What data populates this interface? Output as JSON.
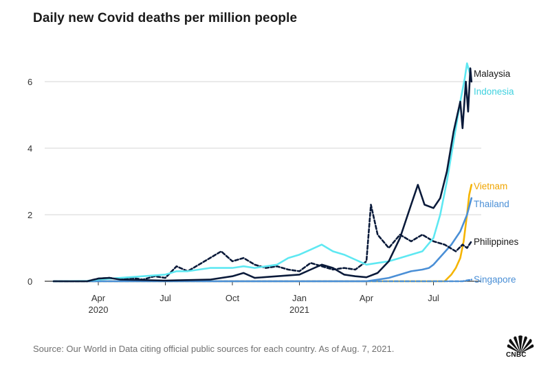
{
  "chart_data": {
    "type": "line",
    "title": "Daily new Covid deaths per million people",
    "source": "Source: Our World in Data citing official public sources for each country. As of Aug. 7, 2021.",
    "xlabel": "",
    "ylabel": "",
    "xlim": [
      0,
      18.6
    ],
    "ylim": [
      0,
      6.6
    ],
    "yticks": [
      0,
      2,
      4,
      6
    ],
    "xticks": [
      {
        "x": 2,
        "label": "Apr",
        "year": "2020"
      },
      {
        "x": 5,
        "label": "Jul",
        "year": ""
      },
      {
        "x": 8,
        "label": "Oct",
        "year": ""
      },
      {
        "x": 11,
        "label": "Jan",
        "year": "2021"
      },
      {
        "x": 14,
        "label": "Apr",
        "year": ""
      },
      {
        "x": 17,
        "label": "Jul",
        "year": ""
      }
    ],
    "series": [
      {
        "name": "Indonesia",
        "color": "#5ee8f2",
        "dash": "none",
        "points": [
          [
            0,
            0
          ],
          [
            1.5,
            0.01
          ],
          [
            2,
            0.05
          ],
          [
            3,
            0.1
          ],
          [
            4,
            0.15
          ],
          [
            5,
            0.2
          ],
          [
            5.5,
            0.3
          ],
          [
            6,
            0.3
          ],
          [
            7,
            0.4
          ],
          [
            8,
            0.4
          ],
          [
            8.5,
            0.45
          ],
          [
            9,
            0.4
          ],
          [
            10,
            0.5
          ],
          [
            10.5,
            0.7
          ],
          [
            11,
            0.8
          ],
          [
            11.5,
            0.95
          ],
          [
            12,
            1.1
          ],
          [
            12.5,
            0.9
          ],
          [
            13,
            0.8
          ],
          [
            13.5,
            0.65
          ],
          [
            14,
            0.5
          ],
          [
            14.5,
            0.55
          ],
          [
            15,
            0.6
          ],
          [
            15.5,
            0.7
          ],
          [
            16,
            0.8
          ],
          [
            16.5,
            0.9
          ],
          [
            17,
            1.3
          ],
          [
            17.3,
            2.0
          ],
          [
            17.6,
            3.0
          ],
          [
            17.9,
            4.2
          ],
          [
            18.2,
            5.4
          ],
          [
            18.4,
            6.1
          ],
          [
            18.5,
            6.55
          ],
          [
            18.65,
            6.2
          ]
        ]
      },
      {
        "name": "Malaysia",
        "color": "#0a1a3a",
        "dash": "none",
        "points": [
          [
            0,
            0
          ],
          [
            1.5,
            0
          ],
          [
            2,
            0.08
          ],
          [
            2.5,
            0.1
          ],
          [
            3,
            0.05
          ],
          [
            5,
            0.02
          ],
          [
            7,
            0.05
          ],
          [
            8,
            0.15
          ],
          [
            8.5,
            0.25
          ],
          [
            9,
            0.1
          ],
          [
            10,
            0.15
          ],
          [
            11,
            0.2
          ],
          [
            11.5,
            0.35
          ],
          [
            12,
            0.5
          ],
          [
            12.5,
            0.4
          ],
          [
            13,
            0.2
          ],
          [
            13.5,
            0.15
          ],
          [
            14,
            0.12
          ],
          [
            14.5,
            0.25
          ],
          [
            15,
            0.6
          ],
          [
            15.5,
            1.3
          ],
          [
            16,
            2.3
          ],
          [
            16.3,
            2.9
          ],
          [
            16.6,
            2.3
          ],
          [
            17,
            2.2
          ],
          [
            17.3,
            2.5
          ],
          [
            17.6,
            3.3
          ],
          [
            17.9,
            4.5
          ],
          [
            18.2,
            5.4
          ],
          [
            18.3,
            4.6
          ],
          [
            18.45,
            6.0
          ],
          [
            18.55,
            5.1
          ],
          [
            18.65,
            6.4
          ],
          [
            18.7,
            6.0
          ]
        ]
      },
      {
        "name": "Vietnam",
        "color": "#f5b400",
        "dash": "none",
        "points": [
          [
            0,
            0
          ],
          [
            16,
            0
          ],
          [
            17.5,
            0
          ],
          [
            17.8,
            0.2
          ],
          [
            18.0,
            0.4
          ],
          [
            18.2,
            0.7
          ],
          [
            18.35,
            1.2
          ],
          [
            18.5,
            2.0
          ],
          [
            18.6,
            2.6
          ],
          [
            18.7,
            2.9
          ]
        ]
      },
      {
        "name": "Thailand",
        "color": "#4a8fd6",
        "dash": "none",
        "points": [
          [
            0,
            0
          ],
          [
            14,
            0
          ],
          [
            14.5,
            0.05
          ],
          [
            15,
            0.1
          ],
          [
            15.5,
            0.2
          ],
          [
            16,
            0.3
          ],
          [
            16.5,
            0.35
          ],
          [
            16.8,
            0.4
          ],
          [
            17,
            0.5
          ],
          [
            17.4,
            0.8
          ],
          [
            17.8,
            1.1
          ],
          [
            18.2,
            1.5
          ],
          [
            18.5,
            2.0
          ],
          [
            18.7,
            2.5
          ]
        ]
      },
      {
        "name": "Philippines",
        "color": "#0a1a3a",
        "dash": "5,3",
        "points": [
          [
            0,
            0
          ],
          [
            1.5,
            0
          ],
          [
            2,
            0.08
          ],
          [
            2.5,
            0.1
          ],
          [
            3,
            0.06
          ],
          [
            3.5,
            0.1
          ],
          [
            4,
            0.05
          ],
          [
            4.5,
            0.15
          ],
          [
            5,
            0.1
          ],
          [
            5.5,
            0.45
          ],
          [
            6,
            0.3
          ],
          [
            6.5,
            0.5
          ],
          [
            7,
            0.7
          ],
          [
            7.5,
            0.9
          ],
          [
            8,
            0.6
          ],
          [
            8.5,
            0.7
          ],
          [
            9,
            0.5
          ],
          [
            9.5,
            0.4
          ],
          [
            10,
            0.45
          ],
          [
            10.5,
            0.35
          ],
          [
            11,
            0.3
          ],
          [
            11.5,
            0.55
          ],
          [
            12,
            0.45
          ],
          [
            12.5,
            0.35
          ],
          [
            13,
            0.4
          ],
          [
            13.5,
            0.35
          ],
          [
            14,
            0.6
          ],
          [
            14.2,
            2.3
          ],
          [
            14.5,
            1.4
          ],
          [
            15,
            1.0
          ],
          [
            15.5,
            1.4
          ],
          [
            16,
            1.2
          ],
          [
            16.5,
            1.4
          ],
          [
            17,
            1.2
          ],
          [
            17.5,
            1.1
          ],
          [
            18,
            0.9
          ],
          [
            18.3,
            1.1
          ],
          [
            18.5,
            1.0
          ],
          [
            18.7,
            1.2
          ]
        ]
      },
      {
        "name": "Singapore",
        "color": "#4a8fd6",
        "dash": "5,3",
        "points": [
          [
            0,
            0
          ],
          [
            18.3,
            0
          ],
          [
            18.7,
            0.05
          ]
        ]
      }
    ]
  },
  "branding": {
    "logo_name": "CNBC peacock logo",
    "logo_text": "CNBC"
  }
}
